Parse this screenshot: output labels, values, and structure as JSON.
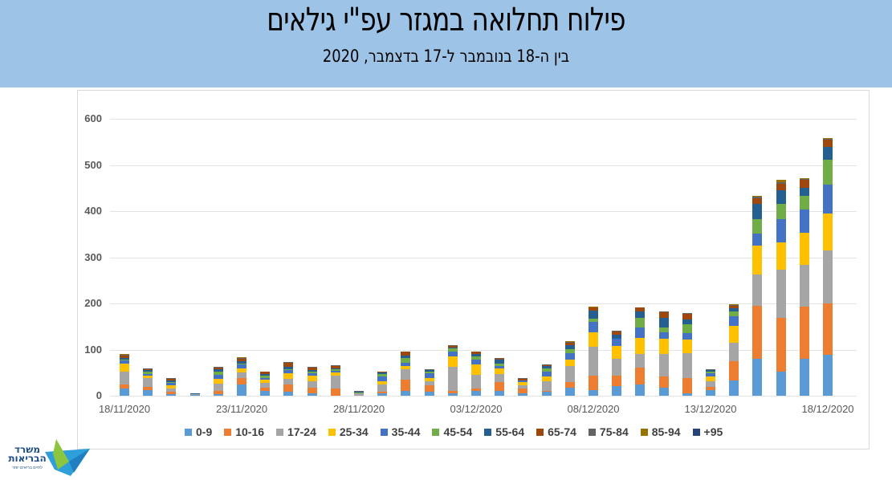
{
  "header": {
    "title": "פילוח תחלואה במגזר עפ\"י גילאים",
    "subtitle": "בין ה-18 בנובמבר  ל-17 בדצמבר, 2020"
  },
  "logo": {
    "line1": "משרד",
    "line2": "הבריאות",
    "tagline": "לחיים בריאים יותר"
  },
  "colors": {
    "header_bg": "#9dc3e6",
    "0-9": "#5b9bd5",
    "10-16": "#ed7d31",
    "17-24": "#a5a5a5",
    "25-34": "#ffc000",
    "35-44": "#4472c4",
    "45-54": "#70ad47",
    "55-64": "#255e91",
    "65-74": "#9e480e",
    "75-84": "#636363",
    "85-94": "#997300",
    "+95": "#264478"
  },
  "chart_data": {
    "type": "bar",
    "stacked": true,
    "title": "פילוח תחלואה במגזר עפ\"י גילאים",
    "subtitle": "בין ה-18 בנובמבר  ל-17 בדצמבר, 2020",
    "xlabel": "",
    "ylabel": "",
    "ylim": [
      0,
      600
    ],
    "yticks": [
      0,
      100,
      200,
      300,
      400,
      500,
      600
    ],
    "grid": true,
    "legend_position": "bottom",
    "x_tick_labels": [
      "18/11/2020",
      "23/11/2020",
      "28/11/2020",
      "03/12/2020",
      "08/12/2020",
      "13/12/2020",
      "18/12/2020"
    ],
    "categories": [
      "18/11/2020",
      "19/11/2020",
      "20/11/2020",
      "21/11/2020",
      "22/11/2020",
      "23/11/2020",
      "24/11/2020",
      "25/11/2020",
      "26/11/2020",
      "27/11/2020",
      "28/11/2020",
      "29/11/2020",
      "30/11/2020",
      "01/12/2020",
      "02/12/2020",
      "03/12/2020",
      "04/12/2020",
      "05/12/2020",
      "06/12/2020",
      "07/12/2020",
      "08/12/2020",
      "09/12/2020",
      "10/12/2020",
      "11/12/2020",
      "12/12/2020",
      "13/12/2020",
      "14/12/2020",
      "15/12/2020",
      "16/12/2020",
      "17/12/2020",
      "18/12/2020"
    ],
    "series": [
      {
        "name": "0-9",
        "values": [
          15,
          12,
          3,
          1,
          3,
          25,
          10,
          8,
          5,
          0,
          0,
          5,
          10,
          8,
          5,
          10,
          10,
          5,
          8,
          18,
          12,
          20,
          25,
          18,
          5,
          12,
          33,
          80,
          53,
          80,
          88
        ]
      },
      {
        "name": "10-16",
        "values": [
          10,
          7,
          5,
          0,
          8,
          13,
          8,
          17,
          12,
          15,
          0,
          4,
          25,
          14,
          5,
          5,
          19,
          10,
          2,
          11,
          32,
          23,
          35,
          23,
          33,
          7,
          42,
          115,
          115,
          113,
          112
        ]
      },
      {
        "name": "17-24",
        "values": [
          28,
          19,
          8,
          2,
          15,
          12,
          10,
          12,
          15,
          28,
          6,
          15,
          22,
          10,
          53,
          30,
          18,
          7,
          22,
          35,
          62,
          37,
          30,
          50,
          55,
          12,
          40,
          67,
          105,
          90,
          114
        ]
      },
      {
        "name": "25-34",
        "values": [
          17,
          5,
          6,
          0,
          10,
          9,
          7,
          12,
          12,
          7,
          0,
          7,
          7,
          7,
          22,
          22,
          12,
          7,
          10,
          15,
          32,
          28,
          35,
          32,
          28,
          10,
          37,
          63,
          60,
          70,
          80
        ]
      },
      {
        "name": "35-44",
        "values": [
          6,
          4,
          5,
          1,
          9,
          8,
          4,
          6,
          5,
          4,
          0,
          10,
          8,
          10,
          10,
          12,
          6,
          4,
          10,
          14,
          22,
          15,
          22,
          14,
          15,
          7,
          20,
          27,
          50,
          50,
          63
        ]
      },
      {
        "name": "45-54",
        "values": [
          3,
          6,
          3,
          0,
          8,
          3,
          4,
          3,
          3,
          3,
          1,
          6,
          9,
          3,
          7,
          7,
          5,
          0,
          8,
          8,
          7,
          0,
          22,
          10,
          18,
          5,
          11,
          30,
          32,
          30,
          55
        ]
      },
      {
        "name": "55-64",
        "values": [
          2,
          2,
          3,
          1,
          5,
          4,
          4,
          5,
          3,
          3,
          1,
          3,
          6,
          3,
          3,
          5,
          8,
          0,
          4,
          8,
          18,
          10,
          14,
          22,
          12,
          2,
          6,
          33,
          30,
          17,
          27
        ]
      },
      {
        "name": "65-74",
        "values": [
          6,
          3,
          4,
          1,
          3,
          6,
          5,
          8,
          6,
          5,
          1,
          2,
          8,
          1,
          3,
          4,
          2,
          4,
          3,
          6,
          6,
          6,
          8,
          12,
          12,
          1,
          5,
          13,
          15,
          17,
          15
        ]
      },
      {
        "name": "75-84",
        "values": [
          2,
          1,
          2,
          0,
          1,
          2,
          1,
          2,
          2,
          1,
          1,
          1,
          1,
          1,
          1,
          1,
          1,
          1,
          1,
          2,
          1,
          2,
          1,
          2,
          1,
          1,
          3,
          3,
          3,
          3,
          3
        ]
      },
      {
        "name": "85-94",
        "values": [
          1,
          0,
          0,
          0,
          1,
          1,
          0,
          1,
          0,
          1,
          0,
          0,
          0,
          0,
          0,
          0,
          0,
          1,
          0,
          1,
          1,
          0,
          0,
          0,
          0,
          0,
          1,
          2,
          4,
          1,
          2
        ]
      },
      {
        "name": "+95",
        "values": [
          0,
          0,
          0,
          0,
          0,
          0,
          0,
          0,
          0,
          0,
          0,
          0,
          0,
          0,
          0,
          0,
          0,
          0,
          0,
          0,
          0,
          0,
          0,
          0,
          0,
          0,
          0,
          0,
          0,
          0,
          0
        ]
      }
    ]
  }
}
